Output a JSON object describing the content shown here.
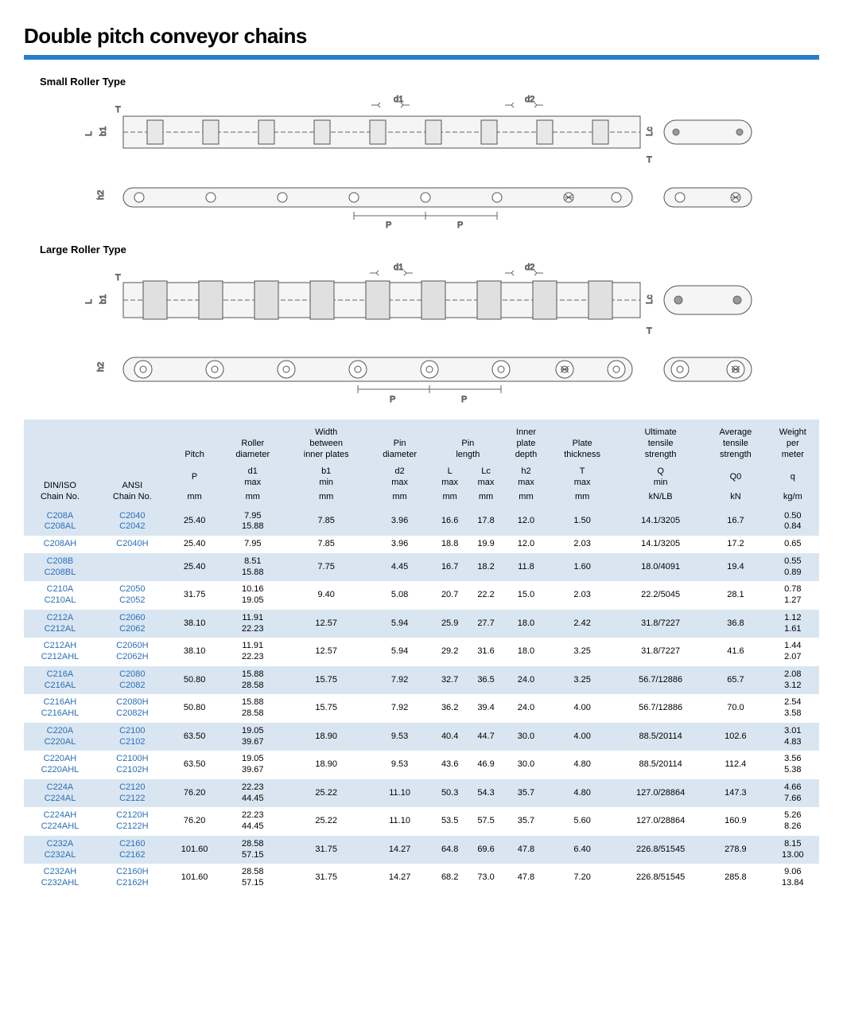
{
  "page": {
    "title": "Double pitch conveyor chains",
    "subtitle_small": "Small Roller Type",
    "subtitle_large": "Large Roller Type",
    "bar_color": "#2a7fc9",
    "chain_color": "#2a6fb8",
    "alt_row_bg": "#d9e6f2"
  },
  "diagram": {
    "labels": {
      "d1": "d1",
      "d2": "d2",
      "P": "P",
      "T": "T",
      "L": "L",
      "Lc": "Lc",
      "b1": "b1",
      "h2": "h2"
    },
    "stroke": "#666666",
    "fill": "#f0f0f0"
  },
  "table": {
    "header1": {
      "diniso": "DIN/ISO\nChain No.",
      "ansi": "ANSI\nChain No.",
      "pitch": "Pitch",
      "roller": "Roller\ndiameter",
      "width": "Width\nbetween\ninner plates",
      "pin_d": "Pin\ndiameter",
      "pin_l": "Pin\nlength",
      "inner": "Inner\nplate\ndepth",
      "plate": "Plate\nthickness",
      "ult": "Ultimate\ntensile\nstrength",
      "avg": "Average\ntensile\nstrength",
      "weight": "Weight\nper\nmeter"
    },
    "header2": {
      "P": "P",
      "d1": "d1\nmax",
      "b1": "b1\nmin",
      "d2": "d2\nmax",
      "L": "L\nmax",
      "Lc": "Lc\nmax",
      "h2": "h2\nmax",
      "T": "T\nmax",
      "Q": "Q\nmin",
      "Q0": "Q0",
      "q": "q"
    },
    "header3": {
      "mm": "mm",
      "knlb": "kN/LB",
      "kn": "kN",
      "kgm": "kg/m"
    },
    "rows": [
      {
        "din": "C208A\nC208AL",
        "ansi": "C2040\nC2042",
        "p": "25.40",
        "d1": "7.95\n15.88",
        "b1": "7.85",
        "d2": "3.96",
        "L": "16.6",
        "Lc": "17.8",
        "h2": "12.0",
        "T": "1.50",
        "Q": "14.1/3205",
        "Q0": "16.7",
        "q": "0.50\n0.84"
      },
      {
        "din": "C208AH",
        "ansi": "C2040H",
        "p": "25.40",
        "d1": "7.95",
        "b1": "7.85",
        "d2": "3.96",
        "L": "18.8",
        "Lc": "19.9",
        "h2": "12.0",
        "T": "2.03",
        "Q": "14.1/3205",
        "Q0": "17.2",
        "q": "0.65"
      },
      {
        "din": "C208B\nC208BL",
        "ansi": "",
        "p": "25.40",
        "d1": "8.51\n15.88",
        "b1": "7.75",
        "d2": "4.45",
        "L": "16.7",
        "Lc": "18.2",
        "h2": "11.8",
        "T": "1.60",
        "Q": "18.0/4091",
        "Q0": "19.4",
        "q": "0.55\n0.89"
      },
      {
        "din": "C210A\nC210AL",
        "ansi": "C2050\nC2052",
        "p": "31.75",
        "d1": "10.16\n19.05",
        "b1": "9.40",
        "d2": "5.08",
        "L": "20.7",
        "Lc": "22.2",
        "h2": "15.0",
        "T": "2.03",
        "Q": "22.2/5045",
        "Q0": "28.1",
        "q": "0.78\n1.27"
      },
      {
        "din": "C212A\nC212AL",
        "ansi": "C2060\nC2062",
        "p": "38.10",
        "d1": "11.91\n22.23",
        "b1": "12.57",
        "d2": "5.94",
        "L": "25.9",
        "Lc": "27.7",
        "h2": "18.0",
        "T": "2.42",
        "Q": "31.8/7227",
        "Q0": "36.8",
        "q": "1.12\n1.61"
      },
      {
        "din": "C212AH\nC212AHL",
        "ansi": "C2060H\nC2062H",
        "p": "38.10",
        "d1": "11.91\n22.23",
        "b1": "12.57",
        "d2": "5.94",
        "L": "29.2",
        "Lc": "31.6",
        "h2": "18.0",
        "T": "3.25",
        "Q": "31.8/7227",
        "Q0": "41.6",
        "q": "1.44\n2.07"
      },
      {
        "din": "C216A\nC216AL",
        "ansi": "C2080\nC2082",
        "p": "50.80",
        "d1": "15.88\n28.58",
        "b1": "15.75",
        "d2": "7.92",
        "L": "32.7",
        "Lc": "36.5",
        "h2": "24.0",
        "T": "3.25",
        "Q": "56.7/12886",
        "Q0": "65.7",
        "q": "2.08\n3.12"
      },
      {
        "din": "C216AH\nC216AHL",
        "ansi": "C2080H\nC2082H",
        "p": "50.80",
        "d1": "15.88\n28.58",
        "b1": "15.75",
        "d2": "7.92",
        "L": "36.2",
        "Lc": "39.4",
        "h2": "24.0",
        "T": "4.00",
        "Q": "56.7/12886",
        "Q0": "70.0",
        "q": "2.54\n3.58"
      },
      {
        "din": "C220A\nC220AL",
        "ansi": "C2100\nC2102",
        "p": "63.50",
        "d1": "19.05\n39.67",
        "b1": "18.90",
        "d2": "9.53",
        "L": "40.4",
        "Lc": "44.7",
        "h2": "30.0",
        "T": "4.00",
        "Q": "88.5/20114",
        "Q0": "102.6",
        "q": "3.01\n4.83"
      },
      {
        "din": "C220AH\nC220AHL",
        "ansi": "C2100H\nC2102H",
        "p": "63.50",
        "d1": "19.05\n39.67",
        "b1": "18.90",
        "d2": "9.53",
        "L": "43.6",
        "Lc": "46.9",
        "h2": "30.0",
        "T": "4.80",
        "Q": "88.5/20114",
        "Q0": "112.4",
        "q": "3.56\n5.38"
      },
      {
        "din": "C224A\nC224AL",
        "ansi": "C2120\nC2122",
        "p": "76.20",
        "d1": "22.23\n44.45",
        "b1": "25.22",
        "d2": "11.10",
        "L": "50.3",
        "Lc": "54.3",
        "h2": "35.7",
        "T": "4.80",
        "Q": "127.0/28864",
        "Q0": "147.3",
        "q": "4.66\n7.66"
      },
      {
        "din": "C224AH\nC224AHL",
        "ansi": "C2120H\nC2122H",
        "p": "76.20",
        "d1": "22.23\n44.45",
        "b1": "25.22",
        "d2": "11.10",
        "L": "53.5",
        "Lc": "57.5",
        "h2": "35.7",
        "T": "5.60",
        "Q": "127.0/28864",
        "Q0": "160.9",
        "q": "5.26\n8.26"
      },
      {
        "din": "C232A\nC232AL",
        "ansi": "C2160\nC2162",
        "p": "101.60",
        "d1": "28.58\n57.15",
        "b1": "31.75",
        "d2": "14.27",
        "L": "64.8",
        "Lc": "69.6",
        "h2": "47.8",
        "T": "6.40",
        "Q": "226.8/51545",
        "Q0": "278.9",
        "q": "8.15\n13.00"
      },
      {
        "din": "C232AH\nC232AHL",
        "ansi": "C2160H\nC2162H",
        "p": "101.60",
        "d1": "28.58\n57.15",
        "b1": "31.75",
        "d2": "14.27",
        "L": "68.2",
        "Lc": "73.0",
        "h2": "47.8",
        "T": "7.20",
        "Q": "226.8/51545",
        "Q0": "285.8",
        "q": "9.06\n13.84"
      }
    ]
  }
}
